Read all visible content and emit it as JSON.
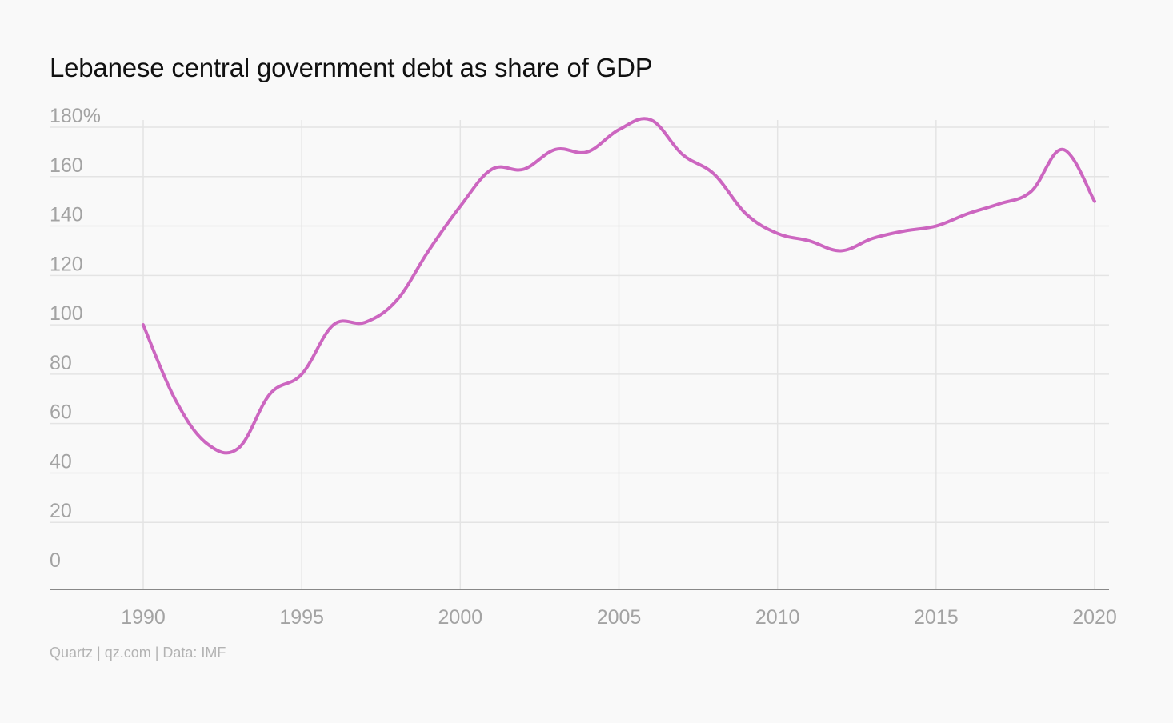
{
  "title": "Lebanese central government debt as share of GDP",
  "source": "Quartz | qz.com | Data: IMF",
  "colors": {
    "line": "#cc66c0",
    "grid": "#e4e4e4",
    "axis": "#888888",
    "tick_text": "#a3a3a3",
    "background": "#f9f9f9"
  },
  "chart_data": {
    "type": "line",
    "title": "Lebanese central government debt as share of GDP",
    "xlabel": "",
    "ylabel": "",
    "xlim": [
      1987,
      2020.5
    ],
    "ylim": [
      0,
      180
    ],
    "y_ticks": [
      0,
      20,
      40,
      60,
      80,
      100,
      120,
      140,
      160,
      180
    ],
    "y_tick_labels": [
      "0",
      "20",
      "40",
      "60",
      "80",
      "100",
      "120",
      "140",
      "160",
      "180%"
    ],
    "x_ticks": [
      1990,
      1995,
      2000,
      2005,
      2010,
      2015,
      2020
    ],
    "x_tick_labels": [
      "1990",
      "1995",
      "2000",
      "2005",
      "2010",
      "2015",
      "2020"
    ],
    "grid": true,
    "series": [
      {
        "x": [
          1990,
          1991,
          1992,
          1993,
          1994,
          1995,
          1996,
          1997,
          1998,
          1999,
          2000,
          2001,
          2002,
          2003,
          2004,
          2005,
          2006,
          2007,
          2008,
          2009,
          2010,
          2011,
          2012,
          2013,
          2014,
          2015,
          2016,
          2017,
          2018,
          2019,
          2020
        ],
        "y": [
          100,
          70,
          52,
          50,
          72,
          80,
          100,
          101,
          110,
          130,
          148,
          163,
          163,
          171,
          170,
          179,
          183,
          169,
          161,
          145,
          137,
          134,
          130,
          135,
          138,
          140,
          145,
          149,
          154,
          171,
          150
        ]
      }
    ]
  }
}
